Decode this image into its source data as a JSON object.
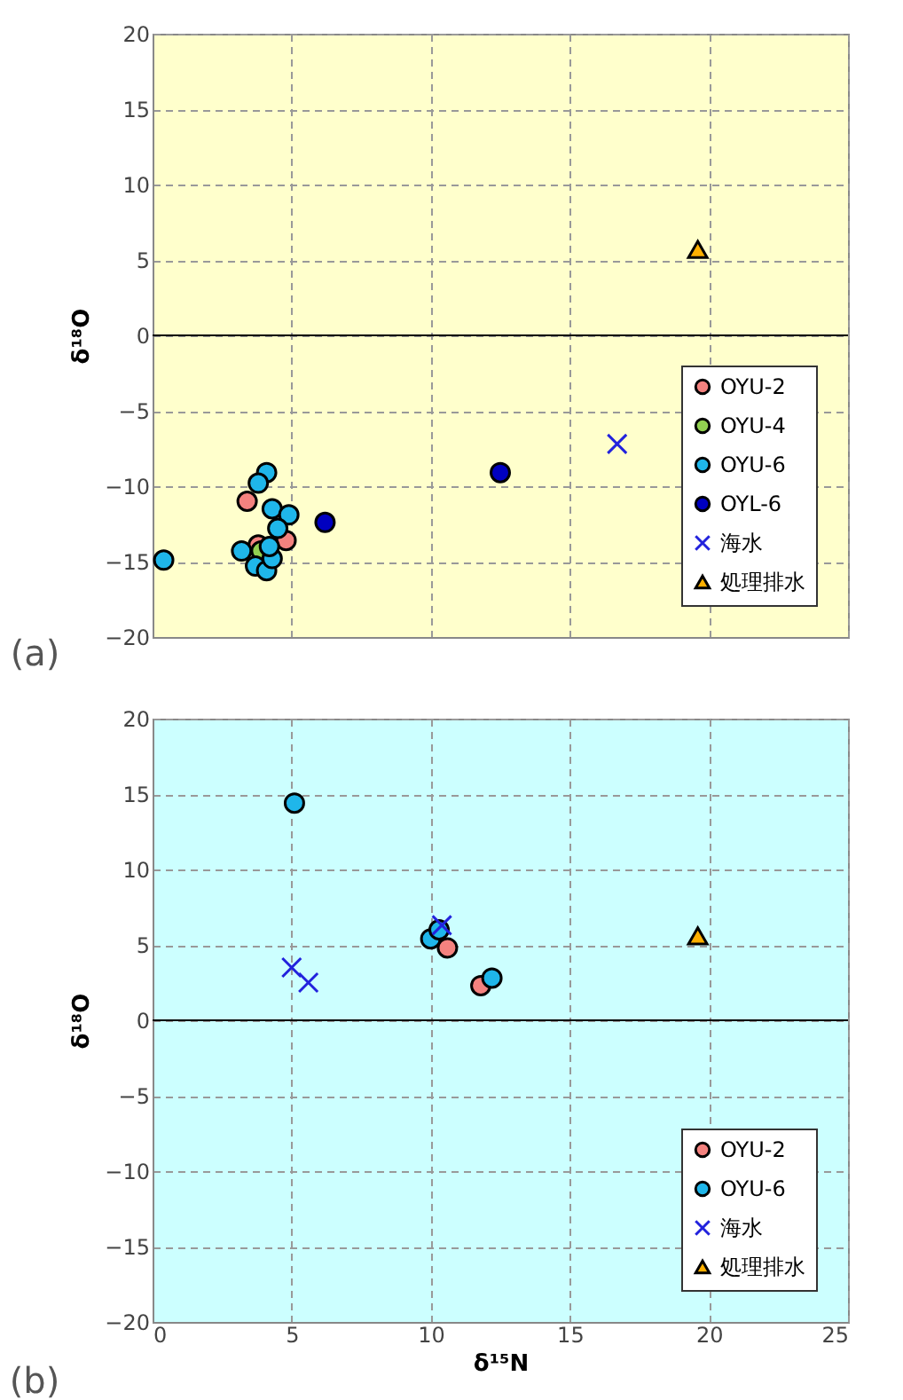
{
  "chart_data": [
    {
      "type": "scatter",
      "title": "(a)",
      "ylabel": "δ¹⁸O",
      "xlim": [
        0,
        25
      ],
      "xticks": [
        0,
        5,
        10,
        15,
        20,
        25
      ],
      "ylim": [
        -20,
        20
      ],
      "yticks": [
        -20,
        -15,
        -10,
        -5,
        0,
        5,
        10,
        15,
        20
      ],
      "grid": true,
      "legend": "bottom right",
      "tick_labels": "y",
      "ref_lines": [
        {
          "axis": "y",
          "value": 0,
          "color": "#000000"
        }
      ],
      "series": [
        {
          "name": "OYU-2",
          "color": "#f4827f",
          "marker": "circle",
          "x": [
            3.4,
            4.8,
            3.8
          ],
          "values": [
            -11.0,
            -13.6,
            -13.9
          ]
        },
        {
          "name": "OYU-4",
          "color": "#92d050",
          "marker": "circle",
          "x": [
            3.9
          ],
          "values": [
            -14.3
          ]
        },
        {
          "name": "OYU-6",
          "color": "#1fb6ea",
          "marker": "circle",
          "x": [
            4.1,
            3.8,
            4.3,
            4.9,
            4.5,
            3.2,
            3.7,
            4.1,
            4.3,
            4.2,
            0.4
          ],
          "values": [
            -9.1,
            -9.8,
            -11.5,
            -11.9,
            -12.8,
            -14.3,
            -15.3,
            -15.6,
            -14.8,
            -14.0,
            -14.9
          ]
        },
        {
          "name": "OYL-6",
          "color": "#0000c0",
          "marker": "circle",
          "x": [
            12.5,
            6.2
          ],
          "values": [
            -9.1,
            -12.4
          ]
        },
        {
          "name": "海水",
          "color": "#2222dd",
          "marker": "cross",
          "x": [
            16.7
          ],
          "values": [
            -7.2
          ]
        },
        {
          "name": "処理排水",
          "color": "#ffb000",
          "marker": "triangle",
          "x": [
            19.6
          ],
          "values": [
            5.7
          ]
        }
      ]
    },
    {
      "type": "scatter",
      "title": "(b)",
      "xlabel": "δ¹⁵N",
      "ylabel": "δ¹⁸O",
      "xlim": [
        0,
        25
      ],
      "xticks": [
        0,
        5,
        10,
        15,
        20,
        25
      ],
      "ylim": [
        -20,
        20
      ],
      "yticks": [
        -20,
        -15,
        -10,
        -5,
        0,
        5,
        10,
        15,
        20
      ],
      "grid": true,
      "legend": "bottom right",
      "ref_lines": [
        {
          "axis": "y",
          "value": 0,
          "color": "#000000"
        }
      ],
      "series": [
        {
          "name": "OYU-2",
          "color": "#f4827f",
          "marker": "circle",
          "x": [
            10.6,
            11.8
          ],
          "values": [
            4.8,
            2.3
          ]
        },
        {
          "name": "OYU-6",
          "color": "#1fb6ea",
          "marker": "circle",
          "x": [
            5.1,
            10.0,
            10.3,
            12.2
          ],
          "values": [
            14.4,
            5.4,
            6.0,
            2.8
          ]
        },
        {
          "name": "海水",
          "color": "#2222dd",
          "marker": "cross",
          "x": [
            5.0,
            5.6,
            10.4
          ],
          "values": [
            3.5,
            2.5,
            6.3
          ]
        },
        {
          "name": "処理排水",
          "color": "#ffb000",
          "marker": "triangle",
          "x": [
            19.6
          ],
          "values": [
            5.6
          ]
        }
      ]
    }
  ]
}
